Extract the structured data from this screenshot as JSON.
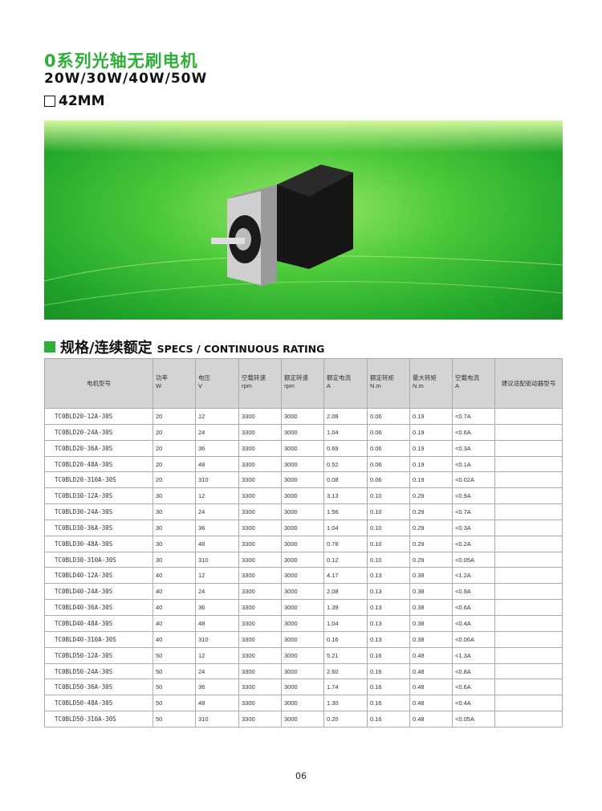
{
  "title": "0系列光轴无刷电机",
  "power_range": "20W/30W/40W/50W",
  "frame_size": "42MM",
  "section": {
    "cn": "规格/连续额定",
    "en": "SPECS / CONTINUOUS RATING"
  },
  "table": {
    "headers": [
      [
        "电机型号",
        ""
      ],
      [
        "功率",
        "W"
      ],
      [
        "电压",
        "V"
      ],
      [
        "空载转速",
        "rpm"
      ],
      [
        "额定转速",
        "rpm"
      ],
      [
        "额定电流",
        "A"
      ],
      [
        "额定转矩",
        "N.m"
      ],
      [
        "最大转矩",
        "N.m"
      ],
      [
        "空载电流",
        "A"
      ],
      [
        "建议适配驱动器型号",
        ""
      ]
    ],
    "rows": [
      [
        "TC0BLD20-12A-30S",
        "20",
        "12",
        "3300",
        "3000",
        "2.08",
        "0.06",
        "0.19",
        "<0.7A",
        ""
      ],
      [
        "TC0BLD20-24A-30S",
        "20",
        "24",
        "3300",
        "3000",
        "1.04",
        "0.06",
        "0.19",
        "<0.6A",
        ""
      ],
      [
        "TC0BLD20-36A-30S",
        "20",
        "36",
        "3300",
        "3000",
        "0.69",
        "0.06",
        "0.19",
        "<0.3A",
        ""
      ],
      [
        "TC0BLD20-48A-30S",
        "20",
        "48",
        "3300",
        "3000",
        "0.52",
        "0.06",
        "0.19",
        "<0.1A",
        ""
      ],
      [
        "TC0BLD20-310A-30S",
        "20",
        "310",
        "3300",
        "3000",
        "0.08",
        "0.06",
        "0.19",
        "<0.02A",
        ""
      ],
      [
        "TC0BLD30-12A-30S",
        "30",
        "12",
        "3300",
        "3000",
        "3.13",
        "0.10",
        "0.29",
        "<0.9A",
        ""
      ],
      [
        "TC0BLD30-24A-30S",
        "30",
        "24",
        "3300",
        "3000",
        "1.56",
        "0.10",
        "0.29",
        "<0.7A",
        ""
      ],
      [
        "TC0BLD30-36A-30S",
        "30",
        "36",
        "3300",
        "3000",
        "1.04",
        "0.10",
        "0.29",
        "<0.3A",
        ""
      ],
      [
        "TC0BLD30-48A-30S",
        "30",
        "48",
        "3300",
        "3000",
        "0.78",
        "0.10",
        "0.29",
        "<0.2A",
        ""
      ],
      [
        "TC0BLD30-310A-30S",
        "30",
        "310",
        "3300",
        "3000",
        "0.12",
        "0.10",
        "0.29",
        "<0.05A",
        ""
      ],
      [
        "TC0BLD40-12A-30S",
        "40",
        "12",
        "3300",
        "3000",
        "4.17",
        "0.13",
        "0.38",
        "<1.2A",
        ""
      ],
      [
        "TC0BLD40-24A-30S",
        "40",
        "24",
        "3300",
        "3000",
        "2.08",
        "0.13",
        "0.38",
        "<0.9A",
        ""
      ],
      [
        "TC0BLD40-36A-30S",
        "40",
        "36",
        "3300",
        "3000",
        "1.39",
        "0.13",
        "0.38",
        "<0.6A",
        ""
      ],
      [
        "TC0BLD40-48A-30S",
        "40",
        "48",
        "3300",
        "3000",
        "1.04",
        "0.13",
        "0.38",
        "<0.4A",
        ""
      ],
      [
        "TC0BLD40-310A-30S",
        "40",
        "310",
        "3300",
        "3000",
        "0.16",
        "0.13",
        "0.38",
        "<0.06A",
        ""
      ],
      [
        "TC0BLD50-12A-30S",
        "50",
        "12",
        "3300",
        "3000",
        "5.21",
        "0.16",
        "0.48",
        "<1.3A",
        ""
      ],
      [
        "TC0BLD50-24A-30S",
        "50",
        "24",
        "3300",
        "3000",
        "2.60",
        "0.16",
        "0.48",
        "<0.8A",
        ""
      ],
      [
        "TC0BLD50-36A-30S",
        "50",
        "36",
        "3300",
        "3000",
        "1.74",
        "0.16",
        "0.48",
        "<0.6A",
        ""
      ],
      [
        "TC0BLD50-48A-30S",
        "50",
        "48",
        "3300",
        "3000",
        "1.30",
        "0.16",
        "0.48",
        "<0.4A",
        ""
      ],
      [
        "TC0BLD50-310A-30S",
        "50",
        "310",
        "3300",
        "3000",
        "0.20",
        "0.16",
        "0.48",
        "<0.05A",
        ""
      ]
    ]
  },
  "page_number": "06",
  "colors": {
    "accent": "#2fae3a"
  }
}
